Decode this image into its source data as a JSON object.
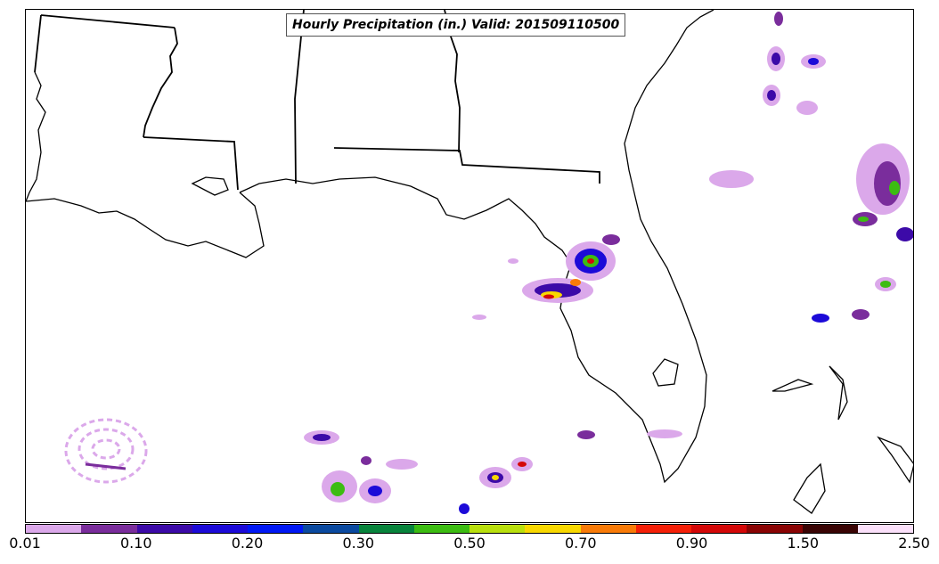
{
  "title": "Hourly Precipitation (in.) Valid: 201509110500",
  "colorbar": {
    "colors": [
      "#dba8ea",
      "#7a2d9c",
      "#3c0aa8",
      "#1c0ad8",
      "#0018f5",
      "#0b4aa0",
      "#08843c",
      "#3cbc12",
      "#b9e00e",
      "#f8d800",
      "#f97b08",
      "#f52008",
      "#d40808",
      "#8a0404",
      "#3a0404",
      "#fbe0fa"
    ],
    "labels": [
      {
        "text": "0.01",
        "index": 0
      },
      {
        "text": "0.10",
        "index": 2
      },
      {
        "text": "0.20",
        "index": 4
      },
      {
        "text": "0.30",
        "index": 6
      },
      {
        "text": "0.50",
        "index": 8
      },
      {
        "text": "0.70",
        "index": 10
      },
      {
        "text": "0.90",
        "index": 12
      },
      {
        "text": "1.50",
        "index": 14
      },
      {
        "text": "2.50",
        "index": 16
      }
    ]
  }
}
